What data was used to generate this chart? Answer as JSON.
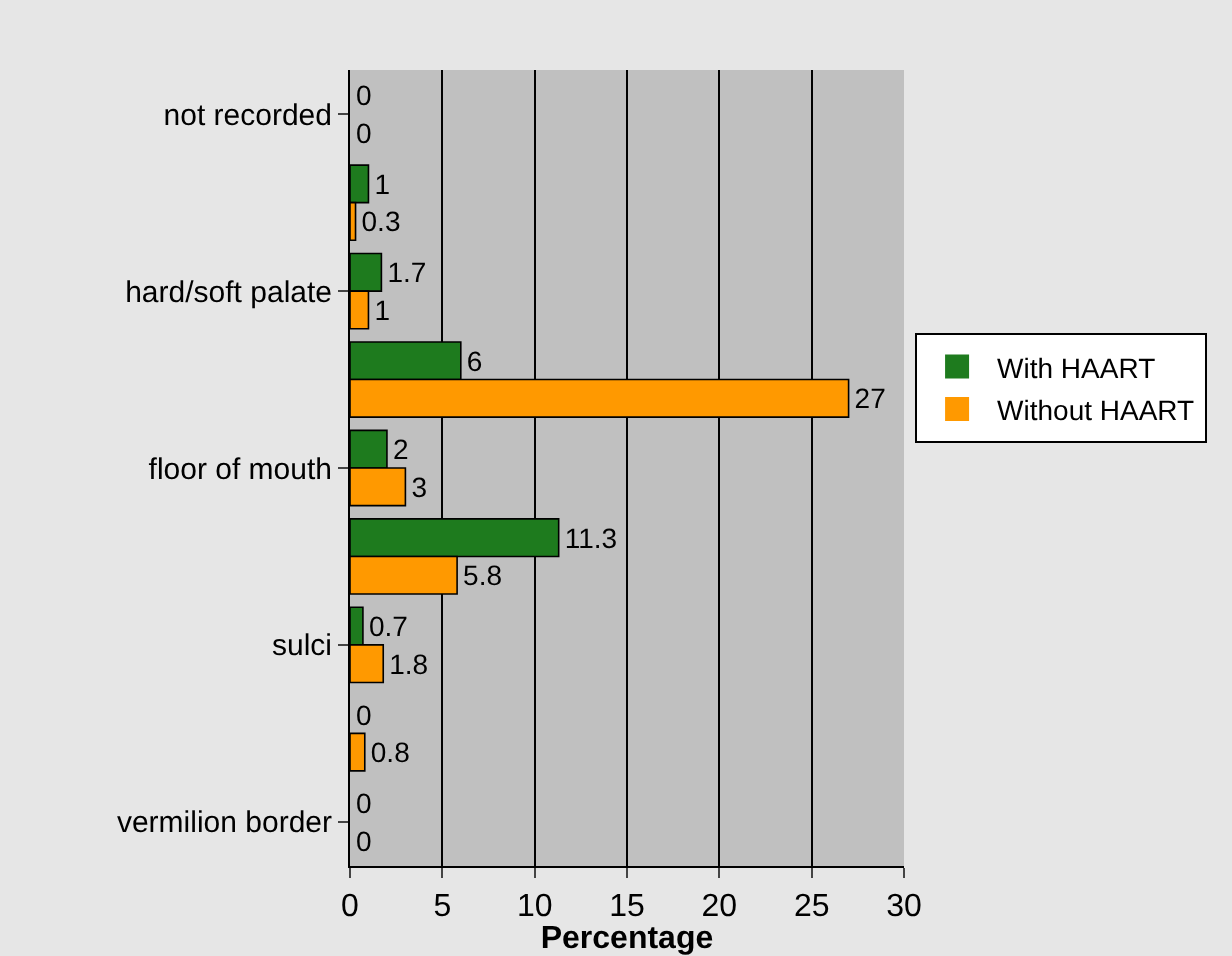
{
  "chart_data": {
    "type": "bar",
    "orientation": "horizontal",
    "xlabel": "Percentage",
    "categories": [
      "not recorded",
      null,
      "hard/soft palate",
      null,
      "floor of mouth",
      null,
      "sulci",
      null,
      "vermilion border"
    ],
    "series": [
      {
        "name": "With HAART",
        "color": "#1e7b1e",
        "values": [
          0,
          1,
          1.7,
          6,
          2,
          11.3,
          0.7,
          0,
          0
        ]
      },
      {
        "name": "Without HAART",
        "color": "#ff9900",
        "values": [
          0,
          0.3,
          1,
          27,
          3,
          5.8,
          1.8,
          0.8,
          0
        ]
      }
    ],
    "xlim": [
      0,
      30
    ],
    "xticks": [
      0,
      5,
      10,
      15,
      20,
      25,
      30
    ],
    "grid": "x",
    "legend": "right",
    "data_labels": true
  }
}
